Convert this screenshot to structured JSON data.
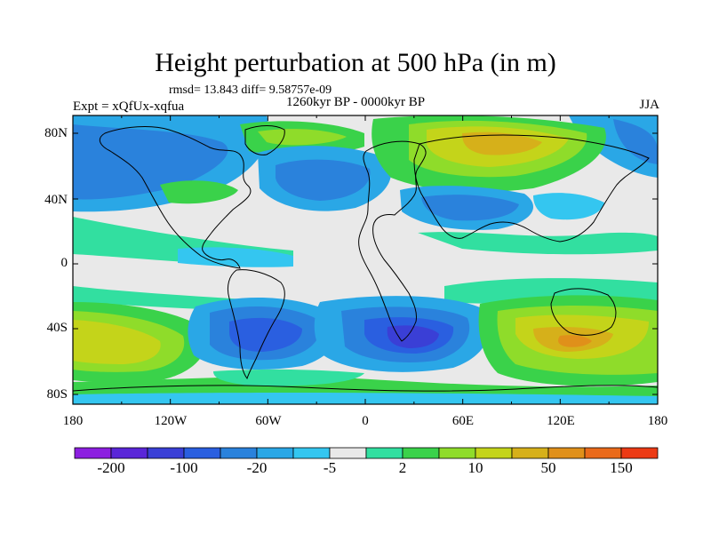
{
  "title": "Height perturbation at 500 hPa (in m)",
  "stats": "rmsd= 13.843 diff= 9.58757e-09",
  "period": "1260kyr BP - 0000kyr BP",
  "experiment": "Expt = xQfUx-xqfua",
  "season": "JJA",
  "map": {
    "lat_ticks": [
      "80N",
      "40N",
      "0",
      "40S",
      "80S"
    ],
    "lon_ticks": [
      "180",
      "120W",
      "60W",
      "0",
      "60E",
      "120E",
      "180"
    ]
  },
  "colorbar": {
    "colors": [
      "#8c1fe0",
      "#5a26d8",
      "#3a3fd6",
      "#2a5fe0",
      "#2a82dc",
      "#2aa7e6",
      "#34c6f0",
      "#e9e9e9",
      "#32dfa0",
      "#3ad24a",
      "#8fdc2a",
      "#c4d41a",
      "#d6b01a",
      "#e0901a",
      "#ea6a1a",
      "#ec3a14"
    ],
    "labels": [
      "-200",
      "-100",
      "-20",
      "-5",
      "2",
      "10",
      "50",
      "150"
    ]
  },
  "colors": {
    "grey": "#e9e9e9",
    "blue_light": "#34c6f0",
    "blue_mid": "#2aa7e6",
    "blue": "#2a82dc",
    "blue_dark": "#2a5fe0",
    "navy": "#3a3fd6",
    "green_mint": "#32dfa0",
    "green": "#3ad24a",
    "green_yellow": "#8fdc2a",
    "yellow": "#c4d41a",
    "gold": "#d6b01a",
    "orange": "#e0901a"
  }
}
